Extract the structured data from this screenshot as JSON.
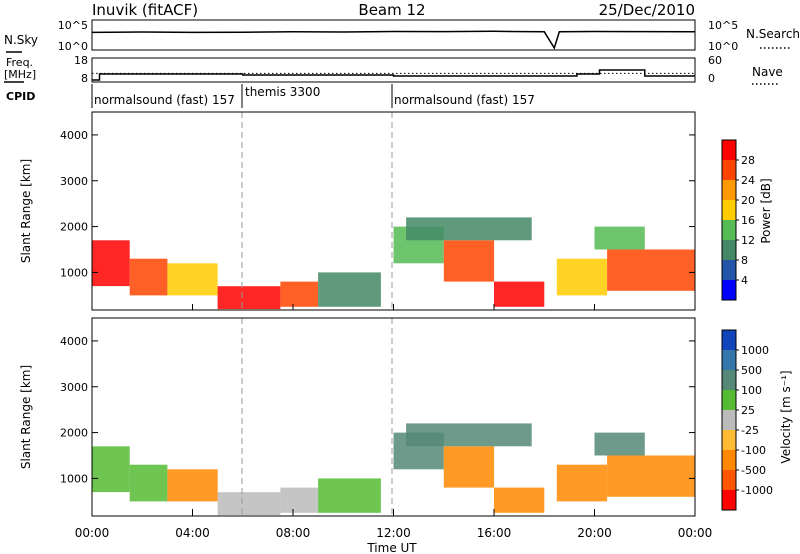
{
  "header": {
    "station": "Inuvik (fitACF)",
    "beam": "Beam 12",
    "date": "25/Dec/2010"
  },
  "top_panel": {
    "left_label": "N.Sky",
    "right_label": "N.Search",
    "left_ticks": [
      "10^5",
      "10^0"
    ],
    "right_ticks": [
      "10^5",
      "10^0"
    ]
  },
  "freq_panel": {
    "left_label_line1": "Freq.",
    "left_label_line2": "[MHz]",
    "right_label": "Nave",
    "left_ticks": [
      "18",
      "8"
    ],
    "right_ticks": [
      "60",
      "0"
    ]
  },
  "cpid": {
    "label": "CPID",
    "modes": [
      "normalsound (fast) 157",
      "themis 3300",
      "normalsound (fast) 157"
    ]
  },
  "axes": {
    "ylabel": "Slant Range [km]",
    "xlabel": "Time UT",
    "yticks": [
      "4000",
      "3000",
      "2000",
      "1000"
    ],
    "xticks": [
      "00:00",
      "04:00",
      "08:00",
      "12:00",
      "16:00",
      "20:00",
      "00:00"
    ]
  },
  "colorbars": {
    "power": {
      "label": "Power [dB]",
      "ticks": [
        "28",
        "24",
        "20",
        "16",
        "12",
        "8",
        "4"
      ],
      "colors": [
        "#ff0000",
        "#ff4400",
        "#ff9900",
        "#ffcc00",
        "#55bb55",
        "#448866",
        "#2255aa",
        "#0000ff"
      ]
    },
    "velocity": {
      "label": "Velocity [m s⁻¹]",
      "ticks": [
        "1000",
        "500",
        "100",
        "25",
        "-25",
        "-100",
        "-500",
        "-1000"
      ],
      "colors": [
        "#1144bb",
        "#3377aa",
        "#558877",
        "#55bb33",
        "#bbbbbb",
        "#ffbb33",
        "#ff8800",
        "#ff5500",
        "#ff0000"
      ]
    }
  },
  "chart_data": [
    {
      "type": "line",
      "title": "N.Sky / N.Search",
      "x": [
        0,
        2,
        4,
        6,
        8,
        10,
        12,
        14,
        16,
        18,
        18.4,
        18.6,
        20,
        22,
        24
      ],
      "y": [
        1000,
        1200,
        1000,
        1100,
        1300,
        1200,
        1500,
        1400,
        1600,
        1300,
        1,
        1300,
        1500,
        1400,
        1300
      ],
      "ylim": [
        1,
        100000
      ],
      "yscale": "log"
    },
    {
      "type": "line",
      "title": "Freq. / Nave",
      "series": [
        {
          "name": "Freq.",
          "x": [
            0,
            0.3,
            6,
            12,
            19.3,
            20.2,
            22,
            24
          ],
          "y": [
            8,
            11,
            10.5,
            10,
            11,
            13,
            10,
            10
          ]
        },
        {
          "name": "Nave",
          "x": [
            0,
            24
          ],
          "y": [
            20,
            20
          ]
        }
      ],
      "ylim_freq": [
        8,
        18
      ],
      "ylim_nave": [
        0,
        60
      ]
    },
    {
      "type": "heatmap",
      "title": "Power [dB]",
      "xlabel": "Time UT",
      "ylabel": "Slant Range [km]",
      "xlim": [
        0,
        24
      ],
      "ylim": [
        180,
        4500
      ],
      "clim": [
        0,
        30
      ],
      "cells": [
        {
          "t0": 0.0,
          "t1": 1.5,
          "r0": 700,
          "r1": 1700,
          "v": 28
        },
        {
          "t0": 1.5,
          "t1": 3.0,
          "r0": 500,
          "r1": 1300,
          "v": 26
        },
        {
          "t0": 3.0,
          "t1": 5.0,
          "r0": 500,
          "r1": 1200,
          "v": 18
        },
        {
          "t0": 5.0,
          "t1": 7.5,
          "r0": 200,
          "r1": 700,
          "v": 28
        },
        {
          "t0": 7.5,
          "t1": 9.0,
          "r0": 250,
          "r1": 800,
          "v": 24
        },
        {
          "t0": 9.0,
          "t1": 11.5,
          "r0": 250,
          "r1": 1000,
          "v": 10
        },
        {
          "t0": 12.0,
          "t1": 14.0,
          "r0": 1200,
          "r1": 2000,
          "v": 12
        },
        {
          "t0": 14.0,
          "t1": 16.0,
          "r0": 800,
          "r1": 1700,
          "v": 26
        },
        {
          "t0": 16.0,
          "t1": 18.0,
          "r0": 250,
          "r1": 800,
          "v": 28
        },
        {
          "t0": 18.5,
          "t1": 20.5,
          "r0": 500,
          "r1": 1300,
          "v": 18
        },
        {
          "t0": 20.5,
          "t1": 24.0,
          "r0": 600,
          "r1": 1500,
          "v": 26
        },
        {
          "t0": 12.5,
          "t1": 17.5,
          "r0": 1700,
          "r1": 2200,
          "v": 8
        },
        {
          "t0": 20.0,
          "t1": 22.0,
          "r0": 1500,
          "r1": 2000,
          "v": 12
        }
      ]
    },
    {
      "type": "heatmap",
      "title": "Velocity [m s⁻¹]",
      "xlabel": "Time UT",
      "ylabel": "Slant Range [km]",
      "xlim": [
        0,
        24
      ],
      "ylim": [
        180,
        4500
      ],
      "cells": [
        {
          "t0": 0.0,
          "t1": 1.5,
          "r0": 700,
          "r1": 1700,
          "v": 80
        },
        {
          "t0": 1.5,
          "t1": 3.0,
          "r0": 500,
          "r1": 1300,
          "v": 60
        },
        {
          "t0": 3.0,
          "t1": 5.0,
          "r0": 500,
          "r1": 1200,
          "v": -150
        },
        {
          "t0": 5.0,
          "t1": 7.5,
          "r0": 200,
          "r1": 700,
          "v": 10
        },
        {
          "t0": 7.5,
          "t1": 9.0,
          "r0": 250,
          "r1": 800,
          "v": 0
        },
        {
          "t0": 9.0,
          "t1": 11.5,
          "r0": 250,
          "r1": 1000,
          "v": 50
        },
        {
          "t0": 12.0,
          "t1": 14.0,
          "r0": 1200,
          "r1": 2000,
          "v": 300
        },
        {
          "t0": 14.0,
          "t1": 16.0,
          "r0": 800,
          "r1": 1700,
          "v": -200
        },
        {
          "t0": 16.0,
          "t1": 18.0,
          "r0": 250,
          "r1": 800,
          "v": -300
        },
        {
          "t0": 18.5,
          "t1": 20.5,
          "r0": 500,
          "r1": 1300,
          "v": -400
        },
        {
          "t0": 20.5,
          "t1": 24.0,
          "r0": 600,
          "r1": 1500,
          "v": -200
        },
        {
          "t0": 12.5,
          "t1": 17.5,
          "r0": 1700,
          "r1": 2200,
          "v": 400
        },
        {
          "t0": 20.0,
          "t1": 22.0,
          "r0": 1500,
          "r1": 2000,
          "v": 300
        }
      ]
    }
  ]
}
